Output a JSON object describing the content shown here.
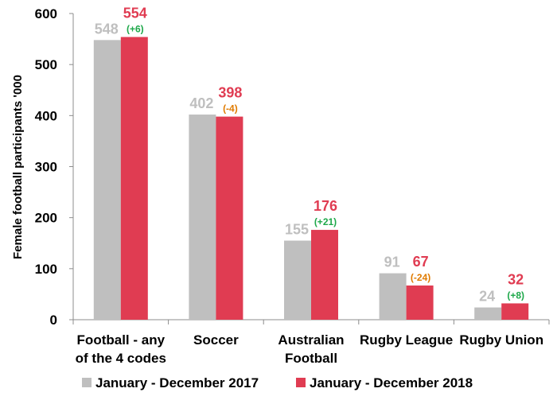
{
  "chart_data": {
    "type": "bar",
    "ylabel": "Female football participants '000",
    "ylim": [
      0,
      600
    ],
    "yticks": [
      "0",
      "100",
      "200",
      "300",
      "400",
      "500",
      "600"
    ],
    "categories": [
      [
        "Football - any",
        "of the 4 codes"
      ],
      [
        "Soccer"
      ],
      [
        "Australian",
        "Football"
      ],
      [
        "Rugby League"
      ],
      [
        "Rugby Union"
      ]
    ],
    "series": [
      {
        "name": "January - December 2017",
        "color": "#bfbfbf",
        "label_color": "#bfbfbf",
        "values": [
          548,
          402,
          155,
          91,
          24
        ]
      },
      {
        "name": "January - December 2018",
        "color": "#e03c52",
        "label_color": "#e03c52",
        "values": [
          554,
          398,
          176,
          67,
          32
        ]
      }
    ],
    "changes": [
      {
        "text": "(+6)",
        "color": "#1ea84a"
      },
      {
        "text": "(-4)",
        "color": "#e07b00"
      },
      {
        "text": "(+21)",
        "color": "#1ea84a"
      },
      {
        "text": "(-24)",
        "color": "#e07b00"
      },
      {
        "text": "(+8)",
        "color": "#1ea84a"
      }
    ],
    "grid": false,
    "legend_position": "bottom"
  }
}
